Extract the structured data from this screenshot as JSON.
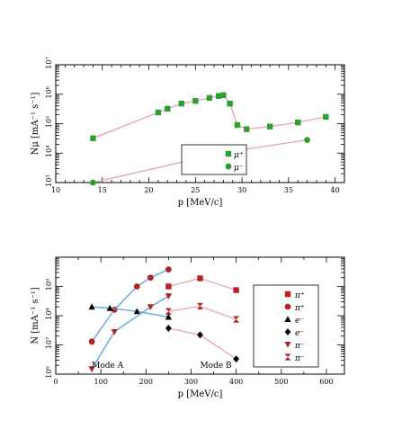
{
  "chart_data": [
    {
      "type": "scatter",
      "xlabel": "p [MeV/c]",
      "ylabel": "Nμ [mA⁻¹ s⁻¹]",
      "xlim": [
        10,
        41
      ],
      "ylim": [
        1000,
        10000000
      ],
      "yscale": "log",
      "x_ticks": [
        "10",
        "15",
        "20",
        "25",
        "30",
        "35",
        "40"
      ],
      "y_ticks": [
        "10³",
        "10⁴",
        "10⁵",
        "10⁶",
        "10⁷"
      ],
      "series": [
        {
          "name": "μ⁺",
          "marker": "square",
          "color": "#2ca02c",
          "x": [
            14,
            21,
            22,
            23.5,
            25,
            26.5,
            27.5,
            28,
            28.7,
            29.5,
            30.5,
            33,
            36,
            39
          ],
          "y": [
            32000,
            240000,
            320000,
            480000,
            590000,
            750000,
            870000,
            930000,
            480000,
            90000,
            65000,
            80000,
            110000,
            170000
          ]
        },
        {
          "name": "μ⁻",
          "marker": "circle",
          "color": "#2ca02c",
          "x": [
            14,
            28,
            37
          ],
          "y": [
            1000,
            10500,
            28000
          ]
        }
      ],
      "legend_position": "bottom-right"
    },
    {
      "type": "scatter",
      "xlabel": "p [MeV/c]",
      "ylabel": "N [mA⁻¹ s⁻¹]",
      "xlim": [
        0,
        640
      ],
      "ylim": [
        1000000,
        10000000000
      ],
      "yscale": "log",
      "x_ticks": [
        "0",
        "100",
        "200",
        "300",
        "400",
        "500",
        "600"
      ],
      "y_ticks": [
        "10⁶",
        "10⁷",
        "10⁸",
        "10⁹"
      ],
      "annotations": [
        "Mode A",
        "Mode B"
      ],
      "series": [
        {
          "name": "π⁺",
          "marker": "square",
          "color": "#b22222",
          "x": [
            250,
            320,
            400
          ],
          "y": [
            1000000000,
            1900000000,
            750000000
          ]
        },
        {
          "name": "π⁺",
          "marker": "circle",
          "color": "#b22222",
          "x": [
            80,
            130,
            180,
            210,
            250
          ],
          "y": [
            13000000,
            160000000,
            1000000000,
            2000000000,
            3800000000
          ]
        },
        {
          "name": "e⁻",
          "marker": "triangle",
          "color": "#000000",
          "x": [
            80,
            120,
            180,
            250
          ],
          "y": [
            200000000,
            180000000,
            140000000,
            90000000
          ]
        },
        {
          "name": "e⁻",
          "marker": "diamond",
          "color": "#000000",
          "x": [
            250,
            320,
            400
          ],
          "y": [
            37000000,
            22000000,
            3300000
          ]
        },
        {
          "name": "π⁻",
          "marker": "triangle-down",
          "color": "#b22222",
          "x": [
            80,
            130,
            210,
            250
          ],
          "y": [
            1500000,
            28000000,
            200000000,
            470000000
          ]
        },
        {
          "name": "π⁻",
          "marker": "bowtie",
          "color": "#b22222",
          "x": [
            250,
            320,
            400
          ],
          "y": [
            140000000,
            210000000,
            75000000
          ]
        }
      ],
      "legend_position": "right"
    }
  ]
}
